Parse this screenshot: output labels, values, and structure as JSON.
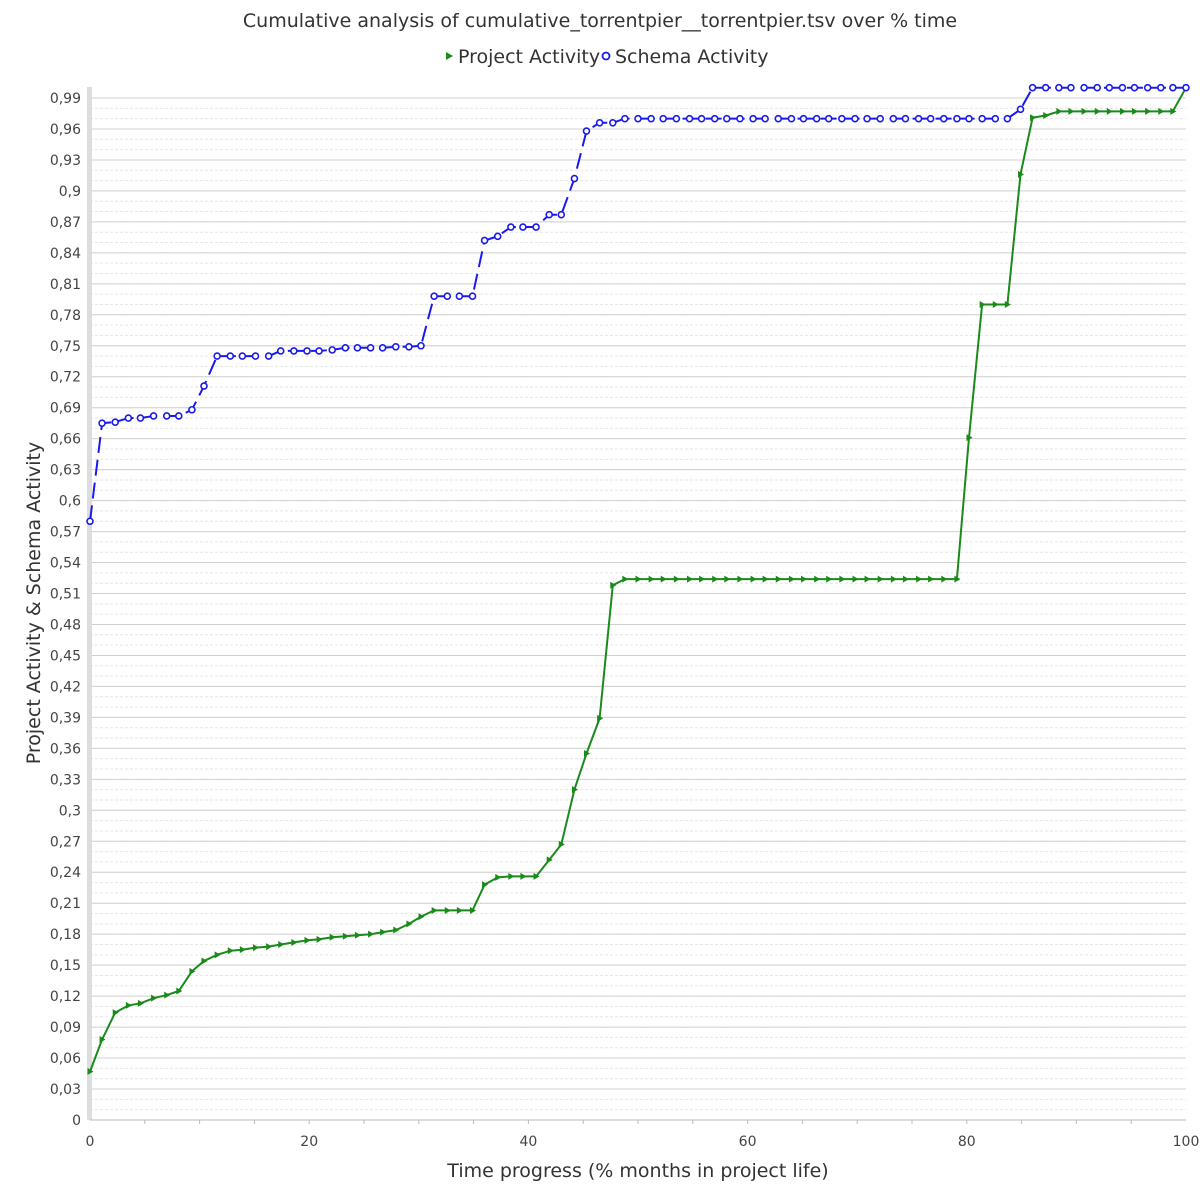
{
  "chart_data": {
    "type": "line",
    "title": "Cumulative analysis of cumulative_torrentpier__torrentpier.tsv over % time",
    "xlabel": "Time progress (% months in project life)",
    "ylabel": "Project Activity & Schema Activity",
    "xlim": [
      0,
      100
    ],
    "ylim": [
      0,
      1.0
    ],
    "x_ticks": [
      "0",
      "20",
      "40",
      "60",
      "80",
      "100"
    ],
    "y_ticks": [
      "0",
      "0,03",
      "0,06",
      "0,09",
      "0,12",
      "0,15",
      "0,18",
      "0,21",
      "0,24",
      "0,27",
      "0,3",
      "0,33",
      "0,36",
      "0,39",
      "0,42",
      "0,45",
      "0,48",
      "0,51",
      "0,54",
      "0,57",
      "0,6",
      "0,63",
      "0,66",
      "0,69",
      "0,72",
      "0,75",
      "0,78",
      "0,81",
      "0,84",
      "0,87",
      "0,9",
      "0,93",
      "0,96",
      "0,99"
    ],
    "grid": true,
    "legend_position": "top",
    "series": [
      {
        "name": "Project Activity",
        "color": "#1a8a1a",
        "marker": "triangle",
        "line": "solid",
        "x": [
          0,
          1.1,
          2.3,
          3.5,
          4.6,
          5.8,
          7.0,
          8.1,
          9.3,
          10.4,
          11.6,
          12.8,
          13.9,
          15.1,
          16.3,
          17.4,
          18.6,
          19.8,
          20.9,
          22.1,
          23.3,
          24.4,
          25.6,
          26.7,
          27.9,
          29.1,
          30.2,
          31.4,
          32.6,
          33.7,
          34.9,
          36.0,
          37.2,
          38.4,
          39.5,
          40.7,
          41.9,
          43.0,
          44.2,
          45.3,
          46.5,
          47.7,
          48.8,
          50.0,
          51.2,
          52.3,
          53.5,
          54.7,
          55.8,
          57.0,
          58.1,
          59.3,
          60.5,
          61.6,
          62.8,
          64.0,
          65.1,
          66.3,
          67.4,
          68.6,
          69.8,
          70.9,
          72.1,
          73.3,
          74.4,
          75.6,
          76.7,
          77.9,
          79.1,
          80.2,
          81.4,
          82.6,
          83.7,
          84.9,
          86.0,
          87.2,
          88.4,
          89.5,
          90.7,
          91.9,
          93.0,
          94.2,
          95.3,
          96.5,
          97.7,
          98.8,
          100
        ],
        "values": [
          0.047,
          0.078,
          0.104,
          0.111,
          0.113,
          0.118,
          0.121,
          0.125,
          0.144,
          0.154,
          0.16,
          0.164,
          0.165,
          0.167,
          0.168,
          0.17,
          0.172,
          0.174,
          0.175,
          0.177,
          0.178,
          0.179,
          0.18,
          0.182,
          0.184,
          0.19,
          0.197,
          0.203,
          0.203,
          0.203,
          0.203,
          0.228,
          0.235,
          0.236,
          0.236,
          0.236,
          0.252,
          0.267,
          0.32,
          0.355,
          0.389,
          0.518,
          0.524,
          0.524,
          0.524,
          0.524,
          0.524,
          0.524,
          0.524,
          0.524,
          0.524,
          0.524,
          0.524,
          0.524,
          0.524,
          0.524,
          0.524,
          0.524,
          0.524,
          0.524,
          0.524,
          0.524,
          0.524,
          0.524,
          0.524,
          0.524,
          0.524,
          0.524,
          0.524,
          0.661,
          0.79,
          0.79,
          0.79,
          0.916,
          0.971,
          0.973,
          0.977,
          0.977,
          0.977,
          0.977,
          0.977,
          0.977,
          0.977,
          0.977,
          0.977,
          0.977,
          1.0
        ]
      },
      {
        "name": "Schema Activity",
        "color": "#1a1aee",
        "marker": "circle",
        "line": "dashed",
        "x": [
          0,
          1.1,
          2.3,
          3.5,
          4.6,
          5.8,
          7.0,
          8.1,
          9.3,
          10.4,
          11.6,
          12.8,
          13.9,
          15.1,
          16.3,
          17.4,
          18.6,
          19.8,
          20.9,
          22.1,
          23.3,
          24.4,
          25.6,
          26.7,
          27.9,
          29.1,
          30.2,
          31.4,
          32.6,
          33.7,
          34.9,
          36.0,
          37.2,
          38.4,
          39.5,
          40.7,
          41.9,
          43.0,
          44.2,
          45.3,
          46.5,
          47.7,
          48.8,
          50.0,
          51.2,
          52.3,
          53.5,
          54.7,
          55.8,
          57.0,
          58.1,
          59.3,
          60.5,
          61.6,
          62.8,
          64.0,
          65.1,
          66.3,
          67.4,
          68.6,
          69.8,
          70.9,
          72.1,
          73.3,
          74.4,
          75.6,
          76.7,
          77.9,
          79.1,
          80.2,
          81.4,
          82.6,
          83.7,
          84.9,
          86.0,
          87.2,
          88.4,
          89.5,
          90.7,
          91.9,
          93.0,
          94.2,
          95.3,
          96.5,
          97.7,
          98.8,
          100
        ],
        "values": [
          0.58,
          0.675,
          0.676,
          0.68,
          0.68,
          0.682,
          0.682,
          0.682,
          0.688,
          0.711,
          0.74,
          0.74,
          0.74,
          0.74,
          0.74,
          0.745,
          0.745,
          0.745,
          0.745,
          0.746,
          0.748,
          0.748,
          0.748,
          0.748,
          0.749,
          0.749,
          0.75,
          0.798,
          0.798,
          0.798,
          0.798,
          0.852,
          0.856,
          0.865,
          0.865,
          0.865,
          0.877,
          0.877,
          0.912,
          0.958,
          0.966,
          0.966,
          0.97,
          0.97,
          0.97,
          0.97,
          0.97,
          0.97,
          0.97,
          0.97,
          0.97,
          0.97,
          0.97,
          0.97,
          0.97,
          0.97,
          0.97,
          0.97,
          0.97,
          0.97,
          0.97,
          0.97,
          0.97,
          0.97,
          0.97,
          0.97,
          0.97,
          0.97,
          0.97,
          0.97,
          0.97,
          0.97,
          0.97,
          0.979,
          1.0,
          1.0,
          1.0,
          1.0,
          1.0,
          1.0,
          1.0,
          1.0,
          1.0,
          1.0,
          1.0,
          1.0,
          1.0
        ]
      }
    ]
  }
}
